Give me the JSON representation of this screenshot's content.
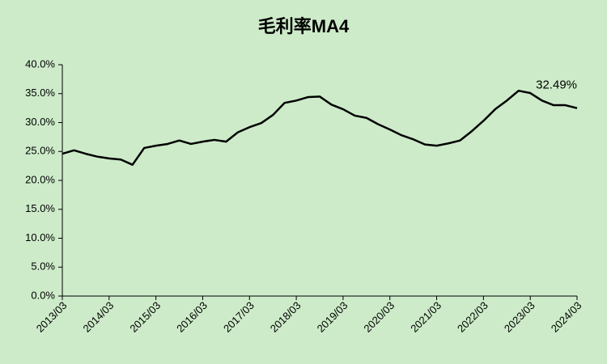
{
  "chart_data": {
    "type": "line",
    "title": "毛利率MA4",
    "categories": [
      "2013/03",
      null,
      null,
      null,
      "2014/03",
      null,
      null,
      null,
      "2015/03",
      null,
      null,
      null,
      "2016/03",
      null,
      null,
      null,
      "2017/03",
      null,
      null,
      null,
      "2018/03",
      null,
      null,
      null,
      "2019/03",
      null,
      null,
      null,
      "2020/03",
      null,
      null,
      null,
      "2021/03",
      null,
      null,
      null,
      "2022/03",
      null,
      null,
      null,
      "2023/03",
      null,
      null,
      null,
      "2024/03"
    ],
    "values": [
      24.6,
      25.2,
      24.6,
      24.1,
      23.8,
      23.6,
      22.7,
      25.6,
      26.0,
      26.3,
      26.9,
      26.3,
      26.7,
      27.0,
      26.7,
      28.3,
      29.2,
      29.9,
      31.3,
      33.4,
      33.8,
      34.4,
      34.5,
      33.1,
      32.3,
      31.2,
      30.8,
      29.7,
      28.8,
      27.8,
      27.1,
      26.2,
      26.0,
      26.4,
      26.9,
      28.5,
      30.3,
      32.3,
      33.8,
      35.5,
      35.1,
      33.8,
      33.0,
      33.0,
      32.49
    ],
    "value_labels": [
      null,
      null,
      null,
      null,
      null,
      null,
      null,
      null,
      null,
      null,
      null,
      null,
      null,
      null,
      null,
      null,
      null,
      null,
      null,
      null,
      null,
      null,
      null,
      null,
      null,
      null,
      null,
      null,
      null,
      null,
      null,
      null,
      null,
      null,
      null,
      null,
      null,
      null,
      null,
      null,
      null,
      null,
      null,
      null,
      "32.49%"
    ],
    "color": "#000000",
    "ylim": [
      0,
      40
    ],
    "yticks": [
      {
        "value": 0,
        "label": "0.0%"
      },
      {
        "value": 5,
        "label": "5.0%"
      },
      {
        "value": 10,
        "label": "10.0%"
      },
      {
        "value": 15,
        "label": "15.0%"
      },
      {
        "value": 20,
        "label": "20.0%"
      },
      {
        "value": 25,
        "label": "25.0%"
      },
      {
        "value": 30,
        "label": "30.0%"
      },
      {
        "value": 35,
        "label": "35.0%"
      },
      {
        "value": 40,
        "label": "40.0%"
      }
    ],
    "grid": false
  }
}
